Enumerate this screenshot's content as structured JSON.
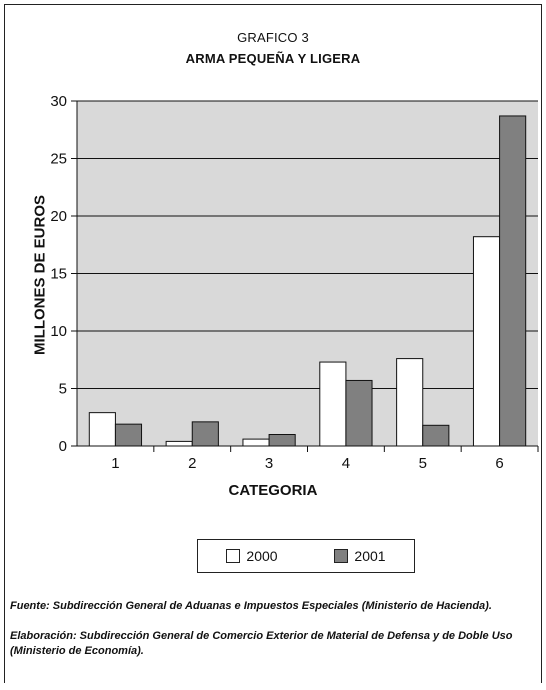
{
  "header": {
    "label": "GRAFICO 3",
    "title": "ARMA PEQUEÑA Y LIGERA"
  },
  "chart_data": {
    "type": "bar",
    "categories": [
      "1",
      "2",
      "3",
      "4",
      "5",
      "6"
    ],
    "series": [
      {
        "name": "2000",
        "values": [
          2.9,
          0.4,
          0.6,
          7.3,
          7.6,
          18.2
        ],
        "color": "#ffffff"
      },
      {
        "name": "2001",
        "values": [
          1.9,
          2.1,
          1.0,
          5.7,
          1.8,
          28.7
        ],
        "color": "#808080"
      }
    ],
    "xlabel": "CATEGORIA",
    "ylabel": "MILLONES DE EUROS",
    "ylim": [
      0,
      30
    ],
    "yticks": [
      "0",
      "5",
      "10",
      "15",
      "20",
      "25",
      "30"
    ],
    "grid": true,
    "plot_background": "#d9d9d9",
    "legend_position": "bottom"
  },
  "notes": {
    "source": "Fuente: Subdirección General de Aduanas e Impuestos Especiales (Ministerio de Hacienda).",
    "elaboration": "Elaboración: Subdirección General de Comercio Exterior de Material de Defensa y de Doble Uso (Ministerio de Economía)."
  }
}
